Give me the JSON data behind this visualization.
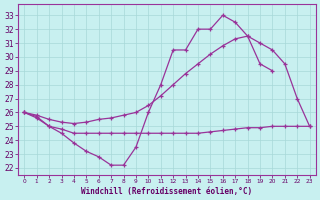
{
  "background_color": "#c8f0f0",
  "grid_color": "#a8d8d8",
  "line_color": "#993399",
  "xlabel": "Windchill (Refroidissement éolien,°C)",
  "ylabel_ticks": [
    22,
    23,
    24,
    25,
    26,
    27,
    28,
    29,
    30,
    31,
    32,
    33
  ],
  "xlim": [
    -0.5,
    23.5
  ],
  "ylim": [
    21.5,
    33.8
  ],
  "series": [
    {
      "x": [
        0,
        1,
        2,
        3,
        4,
        5,
        6,
        7,
        8,
        9,
        10,
        11,
        12,
        13,
        14,
        15,
        16,
        17,
        18,
        19,
        20,
        21,
        22,
        23
      ],
      "y": [
        26.0,
        25.7,
        25.0,
        24.5,
        23.8,
        23.2,
        22.8,
        22.2,
        22.2,
        23.5,
        26.0,
        28.0,
        30.5,
        30.5,
        32.0,
        32.0,
        33.0,
        32.5,
        31.5,
        29.5,
        29.0,
        null,
        null,
        null
      ]
    },
    {
      "x": [
        0,
        1,
        2,
        3,
        4,
        5,
        6,
        7,
        8,
        9,
        10,
        11,
        12,
        13,
        14,
        15,
        16,
        17,
        18,
        19,
        20,
        21,
        22,
        23
      ],
      "y": [
        26.0,
        25.8,
        25.5,
        25.3,
        25.2,
        25.3,
        25.5,
        25.6,
        25.8,
        26.0,
        26.5,
        27.2,
        28.0,
        28.8,
        29.5,
        30.2,
        30.8,
        31.3,
        31.5,
        31.0,
        30.5,
        29.5,
        27.0,
        25.0
      ]
    },
    {
      "x": [
        0,
        1,
        2,
        3,
        4,
        5,
        6,
        7,
        8,
        9,
        10,
        11,
        12,
        13,
        14,
        15,
        16,
        17,
        18,
        19,
        20,
        21,
        22,
        23
      ],
      "y": [
        26.0,
        25.6,
        25.0,
        24.8,
        24.5,
        24.5,
        24.5,
        24.5,
        24.5,
        24.5,
        24.5,
        24.5,
        24.5,
        24.5,
        24.5,
        24.6,
        24.7,
        24.8,
        24.9,
        24.9,
        25.0,
        25.0,
        25.0,
        25.0
      ]
    }
  ]
}
